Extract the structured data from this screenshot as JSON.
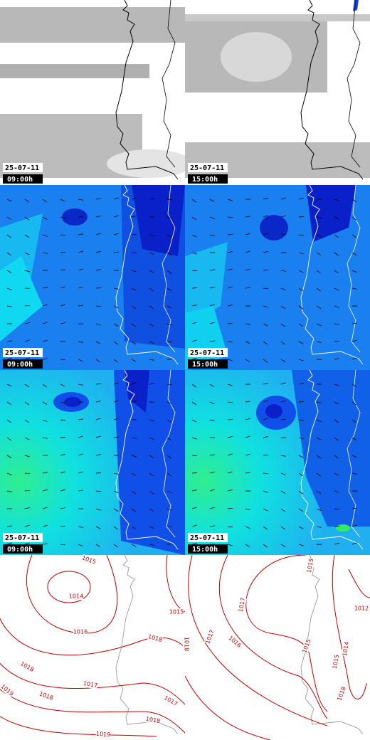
{
  "panels": [
    {
      "date": "25-07-11",
      "time": "09:00h"
    },
    {
      "date": "25-07-11",
      "time": "15:00h"
    },
    {
      "date": "25-07-11",
      "time": "09:00h"
    },
    {
      "date": "25-07-11",
      "time": "15:00h"
    },
    {
      "date": "25-07-11",
      "time": "09:00h"
    },
    {
      "date": "25-07-11",
      "time": "15:00h"
    }
  ],
  "isobars": {
    "labels": [
      1015,
      1014,
      1015,
      1016,
      1018,
      1018,
      1017,
      1018,
      1017,
      1019,
      1018,
      1019,
      1015,
      1012,
      1017,
      1016,
      1015,
      1014,
      1015,
      1018,
      1017,
      1018
    ]
  }
}
